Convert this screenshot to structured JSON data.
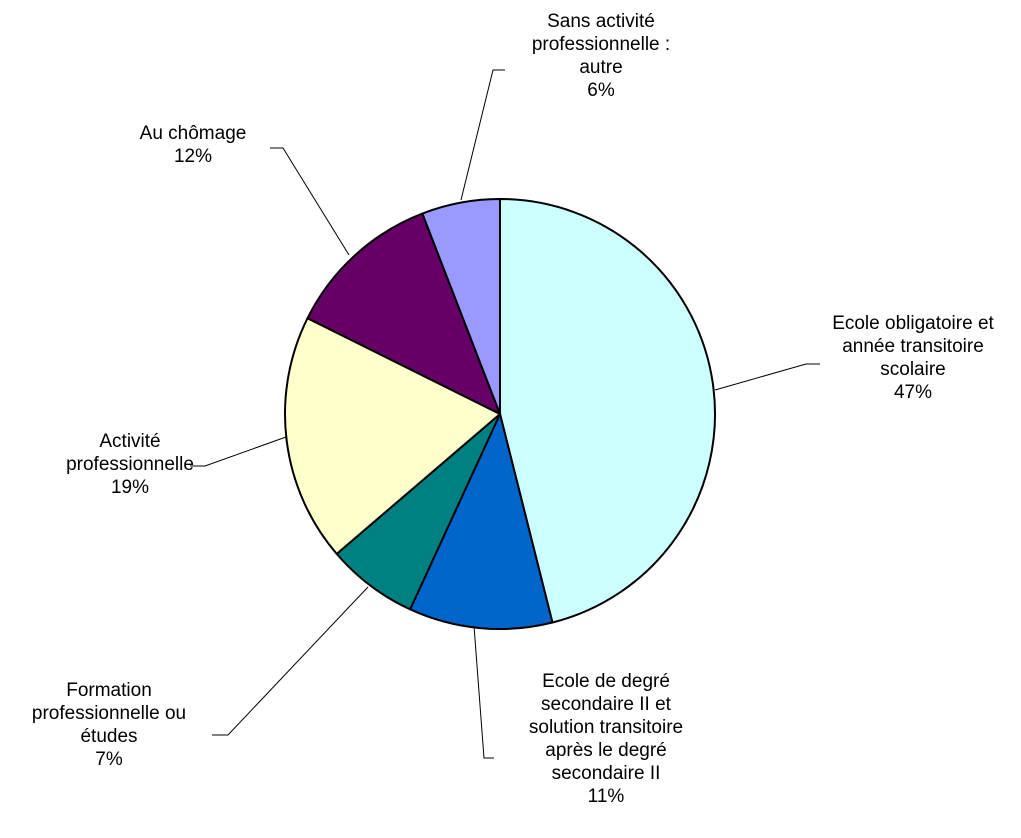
{
  "chart_data": {
    "type": "pie",
    "slices": [
      {
        "label": [
          "Ecole obligatoire et",
          "année transitoire",
          "scolaire"
        ],
        "pct": "47%",
        "value": 47,
        "color": "#ccffff"
      },
      {
        "label": [
          "Ecole de degré",
          "secondaire II et",
          "solution transitoire",
          "après le degré",
          "secondaire II"
        ],
        "pct": "11%",
        "value": 11,
        "color": "#0066cc"
      },
      {
        "label": [
          "Formation",
          "professionnelle ou",
          "études"
        ],
        "pct": "7%",
        "value": 7,
        "color": "#008080"
      },
      {
        "label": [
          "Activité",
          "professionnelle"
        ],
        "pct": "19%",
        "value": 19,
        "color": "#ffffcc"
      },
      {
        "label": [
          "Au chômage"
        ],
        "pct": "12%",
        "value": 12,
        "color": "#660066"
      },
      {
        "label": [
          "Sans activité",
          "professionnelle :",
          "autre"
        ],
        "pct": "6%",
        "value": 6,
        "color": "#9999ff"
      }
    ],
    "start_angle": "12 o'clock",
    "direction": "clockwise",
    "legend": "none"
  }
}
